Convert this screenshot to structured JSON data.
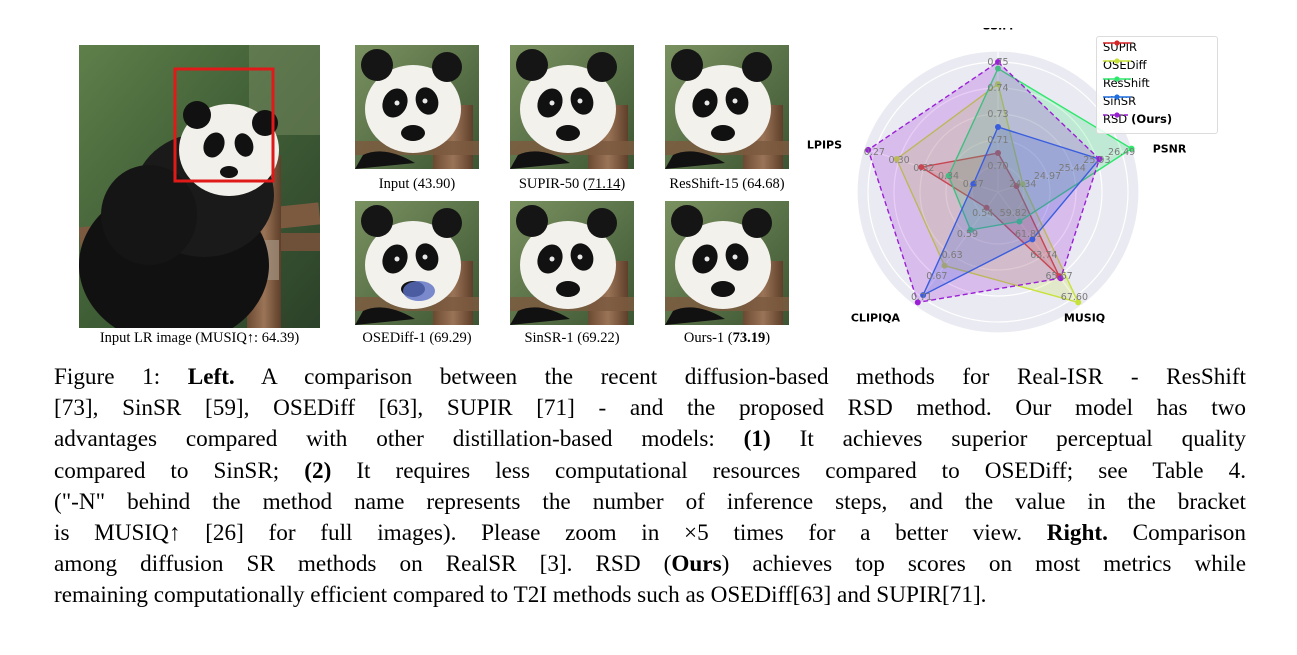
{
  "images": {
    "lr": {
      "caption": "Input LR image (MUSIQ↑: 64.39)"
    },
    "thumbs": [
      {
        "id": "input",
        "caption_pre": "Input (43.90)",
        "caption_u": "",
        "caption_b": "",
        "caption_post": ""
      },
      {
        "id": "supir",
        "caption_pre": "SUPIR-50 (",
        "caption_u": "71.14",
        "caption_b": "",
        "caption_post": ")"
      },
      {
        "id": "resshift",
        "caption_pre": "ResShift-15 (64.68)",
        "caption_u": "",
        "caption_b": "",
        "caption_post": ""
      },
      {
        "id": "osediff",
        "caption_pre": "OSEDiff-1 (69.29)",
        "caption_u": "",
        "caption_b": "",
        "caption_post": ""
      },
      {
        "id": "sinsr",
        "caption_pre": "SinSR-1 (69.22)",
        "caption_u": "",
        "caption_b": "",
        "caption_post": ""
      },
      {
        "id": "ours",
        "caption_pre": "Ours-1 (",
        "caption_u": "",
        "caption_b": "73.19",
        "caption_post": ")"
      }
    ]
  },
  "chart_data": {
    "type": "radar",
    "axes": [
      "SSIM",
      "PSNR",
      "MUSIQ",
      "CLIPIQA",
      "LPIPS"
    ],
    "axis_ticks": {
      "SSIM": [
        "0.70",
        "0.71",
        "0.73",
        "0.74",
        "0.75"
      ],
      "PSNR": [
        "24.34",
        "24.97",
        "25.44",
        "25.93",
        "26.49"
      ],
      "MUSIQ": [
        "59.82",
        "61.81",
        "63.74",
        "65.67",
        "67.60"
      ],
      "CLIPIQA": [
        "0.54",
        "0.59",
        "0.63",
        "0.67",
        "0.71"
      ],
      "LPIPS": [
        "0.37",
        "0.34",
        "0.32",
        "0.30",
        "0.27"
      ]
    },
    "series": [
      {
        "name": "SUPIR",
        "color": "#d62728",
        "r": [
          0.3,
          0.15,
          0.8,
          0.15,
          0.62
        ],
        "dashed": false
      },
      {
        "name": "OSEDiff",
        "color": "#c7e23a",
        "r": [
          0.83,
          0.2,
          1.05,
          0.7,
          0.82
        ],
        "dashed": false
      },
      {
        "name": "ResShift",
        "color": "#2ee86c",
        "r": [
          0.95,
          1.08,
          0.28,
          0.36,
          0.4
        ],
        "dashed": false
      },
      {
        "name": "SinSR",
        "color": "#1f6fe0",
        "r": [
          0.5,
          0.82,
          0.45,
          0.98,
          0.2
        ],
        "dashed": false
      },
      {
        "name": "RSD (Ours)",
        "color": "#9b1fd6",
        "r": [
          1.0,
          0.82,
          0.82,
          1.05,
          1.05
        ],
        "dashed": true
      }
    ],
    "legend": {
      "entries": [
        {
          "label": "SUPIR",
          "bold": ""
        },
        {
          "label": "OSEDiff",
          "bold": ""
        },
        {
          "label": "ResShift",
          "bold": ""
        },
        {
          "label": "SinSR",
          "bold": ""
        },
        {
          "label": "RSD",
          "bold": "(Ours)"
        }
      ],
      "placement": "top-right"
    }
  },
  "caption": {
    "lines": [
      [
        [
          "t",
          "Figure 1: "
        ],
        [
          "b",
          "Left."
        ],
        [
          "t",
          " A comparison between the recent diffusion-based methods for Real-ISR - ResShift"
        ]
      ],
      [
        [
          "t",
          "[73], SinSR [59], OSEDiff [63], SUPIR [71] - and the proposed RSD method. Our model has two"
        ]
      ],
      [
        [
          "t",
          "advantages compared with other distillation-based models: "
        ],
        [
          "b",
          "(1)"
        ],
        [
          "t",
          " It achieves superior perceptual quality"
        ]
      ],
      [
        [
          "t",
          "compared to SinSR; "
        ],
        [
          "b",
          "(2)"
        ],
        [
          "t",
          " It requires less computational resources compared to OSEDiff; see Table 4."
        ]
      ],
      [
        [
          "t",
          "(\"-N\" behind the method name represents the number of inference steps, and the value in the bracket"
        ]
      ],
      [
        [
          "t",
          "is MUSIQ↑ [26] for full images). Please zoom in ×5 times for a better view. "
        ],
        [
          "b",
          "Right."
        ],
        [
          "t",
          " Comparison"
        ]
      ],
      [
        [
          "t",
          "among diffusion SR methods on RealSR [3]. RSD ("
        ],
        [
          "b",
          "Ours"
        ],
        [
          "t",
          ") achieves top scores on most metrics while"
        ]
      ],
      [
        [
          "t",
          "remaining computationally efficient compared to T2I methods such as OSEDiff[63] and SUPIR[71]."
        ]
      ]
    ]
  }
}
